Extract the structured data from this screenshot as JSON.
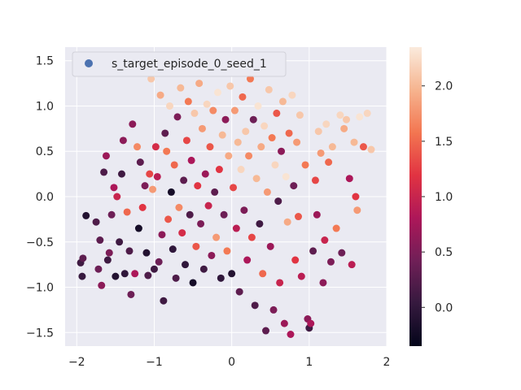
{
  "chart_data": {
    "type": "scatter",
    "title": "",
    "xlabel": "",
    "ylabel": "",
    "xlim": [
      -2.15,
      2.0
    ],
    "ylim": [
      -1.65,
      1.65
    ],
    "xticks": [
      -2,
      -1,
      0,
      1,
      2
    ],
    "yticks": [
      -1.5,
      -1.0,
      -0.5,
      0.0,
      0.5,
      1.0,
      1.5
    ],
    "xtick_labels": [
      "−2",
      "−1",
      "0",
      "1",
      "2"
    ],
    "ytick_labels": [
      "−1.5",
      "−1.0",
      "−0.5",
      "0.0",
      "0.5",
      "1.0",
      "1.5"
    ],
    "grid": true,
    "legend": {
      "placement": "top-left",
      "entries": [
        "s_target_episode_0_seed_1"
      ],
      "marker_color": "#4c72b0"
    },
    "colorbar": {
      "range": [
        -0.35,
        2.35
      ],
      "ticks": [
        0.0,
        0.5,
        1.0,
        1.5,
        2.0
      ],
      "tick_labels": [
        "0.0",
        "0.5",
        "1.0",
        "1.5",
        "2.0"
      ],
      "colormap": "rocket",
      "stops": [
        "#03051a",
        "#35193e",
        "#701f57",
        "#ad1759",
        "#e13342",
        "#f37651",
        "#f6b48f",
        "#faebdd"
      ]
    },
    "points": [
      [
        -1.95,
        -0.73,
        0.1
      ],
      [
        -1.93,
        -0.88,
        0.05
      ],
      [
        -1.92,
        -0.68,
        0.3
      ],
      [
        -1.88,
        -0.21,
        -0.1
      ],
      [
        -1.75,
        -0.28,
        0.2
      ],
      [
        -1.72,
        -0.8,
        0.4
      ],
      [
        -1.7,
        -0.48,
        0.3
      ],
      [
        -1.68,
        -0.98,
        0.6
      ],
      [
        -1.65,
        0.27,
        0.2
      ],
      [
        -1.62,
        0.45,
        0.7
      ],
      [
        -1.6,
        -0.7,
        0.1
      ],
      [
        -1.58,
        -0.62,
        0.5
      ],
      [
        -1.55,
        -0.2,
        0.4
      ],
      [
        -1.52,
        0.1,
        0.8
      ],
      [
        -1.5,
        -0.88,
        -0.1
      ],
      [
        -1.48,
        0.0,
        1.0
      ],
      [
        -1.45,
        -0.5,
        0.1
      ],
      [
        -1.42,
        0.25,
        0.1
      ],
      [
        -1.4,
        0.62,
        0.6
      ],
      [
        -1.38,
        -0.85,
        0.0
      ],
      [
        -1.35,
        -0.17,
        1.5
      ],
      [
        -1.32,
        -0.6,
        0.2
      ],
      [
        -1.3,
        -1.08,
        0.4
      ],
      [
        -1.28,
        0.8,
        0.6
      ],
      [
        -1.25,
        -0.85,
        0.8
      ],
      [
        -1.22,
        0.55,
        1.7
      ],
      [
        -1.2,
        -0.35,
        -0.2
      ],
      [
        -1.18,
        0.38,
        0.3
      ],
      [
        -1.15,
        -0.12,
        1.2
      ],
      [
        -1.12,
        0.12,
        0.5
      ],
      [
        -1.1,
        -0.62,
        -0.1
      ],
      [
        -1.08,
        -0.87,
        0.2
      ],
      [
        -1.06,
        0.25,
        1.3
      ],
      [
        -1.04,
        1.3,
        2.1
      ],
      [
        -1.02,
        0.08,
        1.8
      ],
      [
        -1.0,
        -0.8,
        0.1
      ],
      [
        -0.98,
        0.55,
        1.1
      ],
      [
        -0.96,
        0.22,
        0.9
      ],
      [
        -0.94,
        -0.72,
        0.4
      ],
      [
        -0.92,
        1.12,
        1.9
      ],
      [
        -0.9,
        -0.42,
        0.6
      ],
      [
        -0.88,
        -1.15,
        0.1
      ],
      [
        -0.86,
        0.7,
        0.3
      ],
      [
        -0.84,
        0.5,
        1.6
      ],
      [
        -0.82,
        -0.25,
        1.4
      ],
      [
        -0.8,
        1.0,
        2.2
      ],
      [
        -0.78,
        0.05,
        -0.2
      ],
      [
        -0.76,
        -0.58,
        0.0
      ],
      [
        -0.74,
        0.35,
        1.5
      ],
      [
        -0.72,
        -0.9,
        0.2
      ],
      [
        -0.7,
        0.88,
        0.5
      ],
      [
        -0.68,
        -0.12,
        1.7
      ],
      [
        -0.66,
        1.2,
        2.0
      ],
      [
        -0.64,
        -0.4,
        1.1
      ],
      [
        -0.62,
        0.18,
        0.3
      ],
      [
        -0.6,
        -0.75,
        0.0
      ],
      [
        -0.58,
        0.62,
        1.3
      ],
      [
        -0.56,
        1.05,
        1.6
      ],
      [
        -0.54,
        -0.2,
        0.2
      ],
      [
        -0.52,
        0.4,
        0.8
      ],
      [
        -0.5,
        -0.95,
        -0.2
      ],
      [
        -0.48,
        0.92,
        2.1
      ],
      [
        -0.46,
        -0.55,
        1.4
      ],
      [
        -0.44,
        0.12,
        1.2
      ],
      [
        -0.42,
        1.25,
        1.9
      ],
      [
        -0.4,
        -0.3,
        0.5
      ],
      [
        -0.38,
        0.75,
        1.8
      ],
      [
        -0.36,
        -0.8,
        0.1
      ],
      [
        -0.34,
        0.25,
        0.7
      ],
      [
        -0.32,
        1.02,
        2.2
      ],
      [
        -0.3,
        -0.1,
        1.0
      ],
      [
        -0.28,
        0.55,
        1.4
      ],
      [
        -0.26,
        -0.65,
        0.6
      ],
      [
        -0.24,
        0.95,
        1.7
      ],
      [
        -0.22,
        0.05,
        0.3
      ],
      [
        -0.2,
        -0.45,
        1.8
      ],
      [
        -0.18,
        1.15,
        2.3
      ],
      [
        -0.16,
        0.3,
        1.2
      ],
      [
        -0.14,
        -0.9,
        0.0
      ],
      [
        -0.12,
        0.68,
        2.0
      ],
      [
        -0.1,
        -0.2,
        0.4
      ],
      [
        -0.08,
        0.85,
        0.6
      ],
      [
        -0.06,
        -0.6,
        1.6
      ],
      [
        -0.04,
        0.45,
        1.9
      ],
      [
        -0.02,
        1.22,
        2.1
      ],
      [
        0.0,
        -0.85,
        -0.1
      ],
      [
        0.02,
        0.1,
        1.3
      ],
      [
        0.04,
        0.95,
        1.8
      ],
      [
        0.06,
        -0.35,
        0.9
      ],
      [
        0.08,
        0.6,
        2.0
      ],
      [
        0.1,
        -1.05,
        0.3
      ],
      [
        0.12,
        0.3,
        2.2
      ],
      [
        0.14,
        1.1,
        1.5
      ],
      [
        0.16,
        -0.15,
        0.5
      ],
      [
        0.18,
        0.72,
        2.1
      ],
      [
        0.2,
        -0.7,
        0.8
      ],
      [
        0.22,
        0.45,
        1.7
      ],
      [
        0.24,
        1.3,
        1.6
      ],
      [
        0.26,
        -0.45,
        1.3
      ],
      [
        0.28,
        0.85,
        0.4
      ],
      [
        0.3,
        -1.2,
        0.2
      ],
      [
        0.32,
        0.2,
        2.0
      ],
      [
        0.34,
        1.0,
        2.3
      ],
      [
        0.36,
        -0.3,
        0.1
      ],
      [
        0.38,
        0.55,
        1.9
      ],
      [
        0.4,
        -0.85,
        1.5
      ],
      [
        0.42,
        0.78,
        2.2
      ],
      [
        0.44,
        -1.48,
        0.3
      ],
      [
        0.46,
        0.05,
        1.8
      ],
      [
        0.48,
        1.18,
        2.1
      ],
      [
        0.5,
        -0.55,
        0.7
      ],
      [
        0.52,
        0.65,
        1.6
      ],
      [
        0.54,
        -1.25,
        0.5
      ],
      [
        0.56,
        0.35,
        2.2
      ],
      [
        0.58,
        0.92,
        1.4
      ],
      [
        0.6,
        -0.05,
        0.2
      ],
      [
        0.62,
        -0.95,
        1.0
      ],
      [
        0.64,
        0.5,
        0.6
      ],
      [
        0.66,
        1.05,
        2.0
      ],
      [
        0.68,
        -1.4,
        0.7
      ],
      [
        0.7,
        0.22,
        2.3
      ],
      [
        0.72,
        -0.28,
        1.9
      ],
      [
        0.74,
        0.7,
        1.5
      ],
      [
        0.76,
        -1.52,
        0.8
      ],
      [
        0.78,
        1.12,
        2.2
      ],
      [
        0.8,
        0.12,
        0.4
      ],
      [
        0.82,
        -0.7,
        1.2
      ],
      [
        0.84,
        0.6,
        1.8
      ],
      [
        0.86,
        -0.22,
        1.4
      ],
      [
        0.88,
        0.9,
        2.1
      ],
      [
        0.9,
        -0.88,
        0.9
      ],
      [
        0.95,
        0.35,
        1.6
      ],
      [
        0.98,
        -1.35,
        0.6
      ],
      [
        1.0,
        -1.45,
        0.1
      ],
      [
        1.02,
        -1.4,
        0.8
      ],
      [
        1.05,
        -0.6,
        0.3
      ],
      [
        1.08,
        0.18,
        1.3
      ],
      [
        1.1,
        -0.2,
        0.7
      ],
      [
        1.12,
        0.72,
        2.1
      ],
      [
        1.15,
        0.48,
        1.8
      ],
      [
        1.18,
        -0.95,
        0.6
      ],
      [
        1.2,
        -0.48,
        1.0
      ],
      [
        1.22,
        0.8,
        2.2
      ],
      [
        1.25,
        0.38,
        1.5
      ],
      [
        1.28,
        -0.72,
        0.5
      ],
      [
        1.3,
        0.55,
        2.0
      ],
      [
        1.35,
        -0.35,
        1.6
      ],
      [
        1.4,
        0.9,
        2.2
      ],
      [
        1.42,
        -0.62,
        0.4
      ],
      [
        1.45,
        0.75,
        1.9
      ],
      [
        1.48,
        0.85,
        2.1
      ],
      [
        1.52,
        0.2,
        0.8
      ],
      [
        1.55,
        -0.75,
        0.9
      ],
      [
        1.58,
        0.6,
        2.0
      ],
      [
        1.6,
        0.0,
        1.2
      ],
      [
        1.62,
        -0.15,
        1.8
      ],
      [
        1.65,
        0.88,
        2.3
      ],
      [
        1.7,
        0.55,
        1.4
      ],
      [
        1.75,
        0.92,
        2.2
      ],
      [
        1.8,
        0.52,
        2.1
      ]
    ]
  }
}
